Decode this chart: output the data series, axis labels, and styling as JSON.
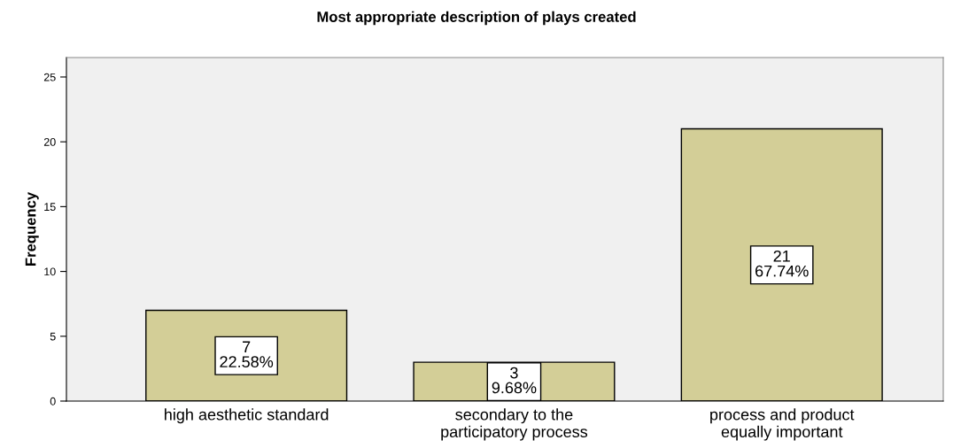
{
  "chart_data": {
    "type": "bar",
    "title": "Most appropriate description of plays created",
    "ylabel": "Frequency",
    "categories": [
      "high aesthetic standard",
      "secondary to the\nparticipatory process",
      "process and product\nequally important"
    ],
    "values": [
      7,
      3,
      21
    ],
    "color": "#d3ce97",
    "value_labels": [
      "7\n22.58%",
      "3\n9.68%",
      "21\n67.74%"
    ],
    "ylim": [
      0,
      26.5
    ],
    "yticks": [
      0,
      5,
      10,
      15,
      20,
      25
    ],
    "grid": false,
    "legend": false
  }
}
